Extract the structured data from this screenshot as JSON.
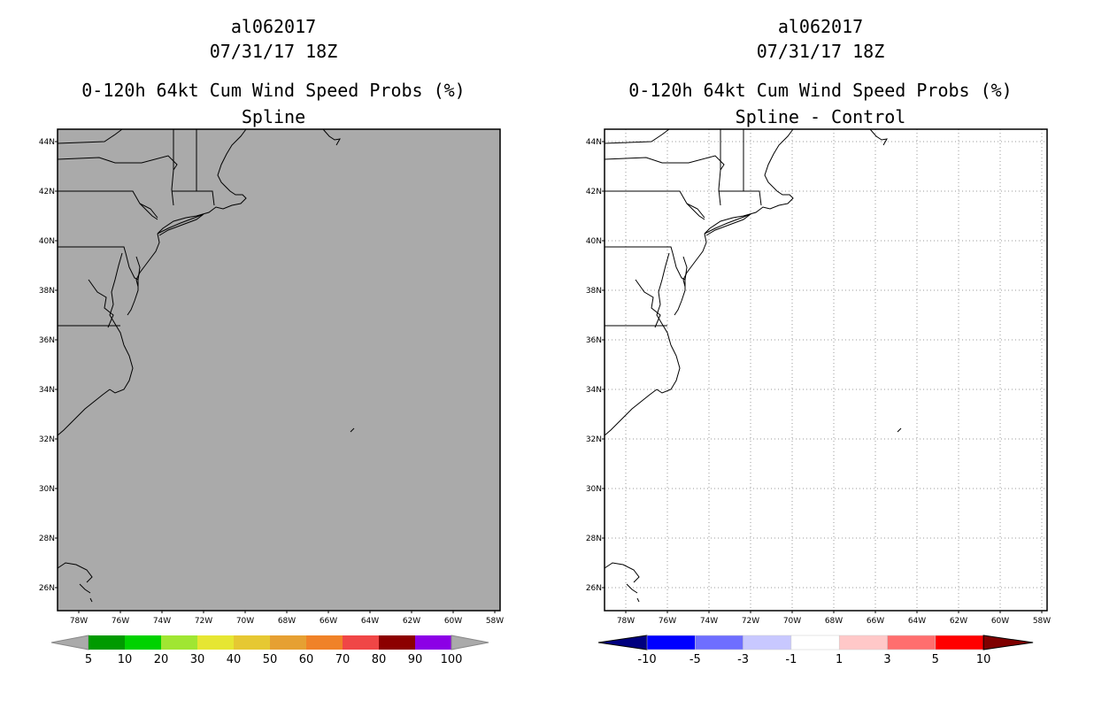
{
  "left": {
    "storm_id": "al062017",
    "datetime": "07/31/17 18Z",
    "product": "0-120h 64kt Cum Wind Speed Probs (%)",
    "subtitle": "Spline",
    "background_color": "#aaaaaa",
    "colorbar": {
      "labels": [
        "5",
        "10",
        "20",
        "30",
        "40",
        "50",
        "60",
        "70",
        "80",
        "90",
        "100"
      ],
      "colors": [
        "#009a00",
        "#00d200",
        "#a0e632",
        "#e6e632",
        "#e6c832",
        "#e6a032",
        "#f08228",
        "#f04646",
        "#8c0000",
        "#8c00e6"
      ],
      "end_color": "#aaaaaa"
    }
  },
  "right": {
    "storm_id": "al062017",
    "datetime": "07/31/17 18Z",
    "product": "0-120h 64kt Cum Wind Speed Probs (%)",
    "subtitle": "Spline - Control",
    "background_color": "#ffffff",
    "colorbar": {
      "labels": [
        "-10",
        "-5",
        "-3",
        "-1",
        "1",
        "3",
        "5",
        "10"
      ],
      "colors": [
        "#0000ff",
        "#6e6eff",
        "#c8c8ff",
        "#ffffff",
        "#ffc8c8",
        "#ff6e6e",
        "#ff0000"
      ],
      "low_color": "#00007f",
      "high_color": "#7f0000"
    }
  },
  "axes": {
    "lat_labels": [
      "44N",
      "42N",
      "40N",
      "38N",
      "36N",
      "34N",
      "32N",
      "30N",
      "28N",
      "26N"
    ],
    "lon_labels": [
      "78W",
      "76W",
      "74W",
      "72W",
      "70W",
      "68W",
      "66W",
      "64W",
      "62W",
      "60W",
      "58W"
    ]
  }
}
